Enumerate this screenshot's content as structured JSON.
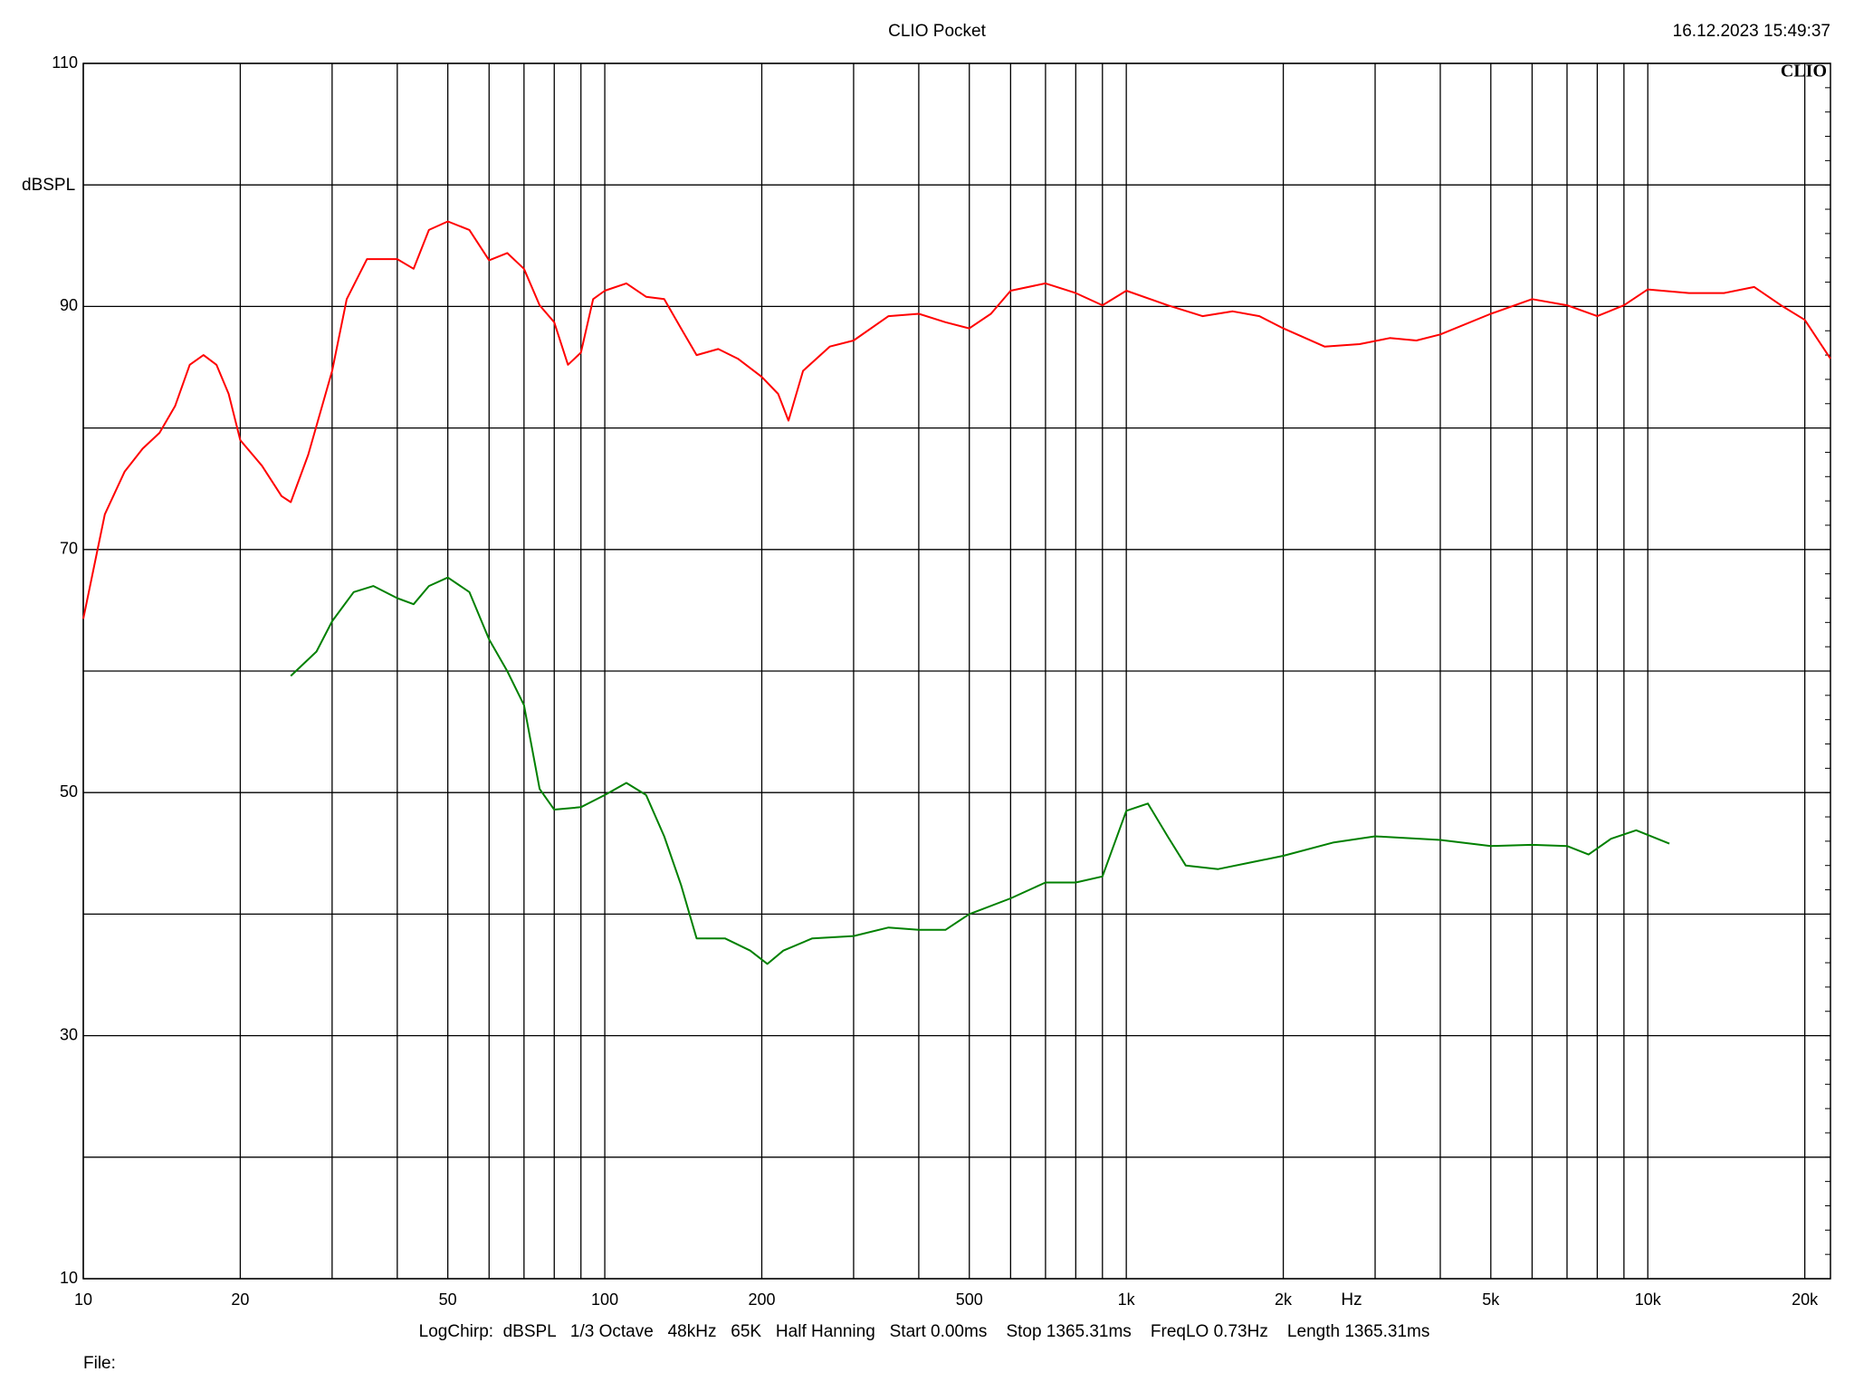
{
  "chart_data": {
    "type": "line",
    "title": "CLIO Pocket",
    "timestamp": "16.12.2023 15:49:37",
    "logo": "CLIO",
    "y_label": "dBSPL",
    "x_label": "Hz",
    "footer": "LogChirp:  dBSPL   1/3 Octave   48kHz   65K   Half Hanning   Start 0.00ms    Stop 1365.31ms    FreqLO 0.73Hz    Length 1365.31ms",
    "file_label": "File:",
    "x_log": true,
    "grid": true,
    "xlim": [
      10,
      22400
    ],
    "ylim": [
      10,
      110
    ],
    "xticks": [
      10,
      20,
      50,
      100,
      200,
      500,
      {
        "value": 1000,
        "label": "1k"
      },
      {
        "value": 2000,
        "label": "2k"
      },
      {
        "value": 5000,
        "label": "5k"
      },
      {
        "value": 10000,
        "label": "10k"
      },
      {
        "value": 20000,
        "label": "20k"
      }
    ],
    "xminor": [
      30,
      40,
      60,
      70,
      80,
      90,
      300,
      400,
      600,
      700,
      800,
      900,
      3000,
      4000,
      6000,
      7000,
      8000,
      9000
    ],
    "yticks": [
      10,
      30,
      50,
      70,
      90,
      110
    ],
    "yminor": [
      20,
      40,
      60,
      80,
      100
    ],
    "series": [
      {
        "color": "#ff0000",
        "x": [
          10,
          11,
          12,
          13,
          14,
          15,
          16,
          17,
          18,
          19,
          20,
          22,
          24,
          25,
          27,
          30,
          32,
          35,
          40,
          43,
          46,
          50,
          55,
          60,
          65,
          70,
          75,
          80,
          85,
          90,
          95,
          100,
          110,
          120,
          130,
          140,
          150,
          165,
          180,
          200,
          215,
          225,
          240,
          270,
          300,
          350,
          400,
          450,
          500,
          550,
          600,
          700,
          800,
          900,
          1000,
          1200,
          1400,
          1600,
          1800,
          2000,
          2400,
          2800,
          3200,
          3600,
          4000,
          5000,
          6000,
          7000,
          8000,
          9000,
          10000,
          12000,
          14000,
          16000,
          18000,
          20000,
          22400
        ],
        "values": [
          64.3,
          72.9,
          76.4,
          78.3,
          79.6,
          81.8,
          85.2,
          86.0,
          85.2,
          82.8,
          79.0,
          76.9,
          74.4,
          73.9,
          77.8,
          84.7,
          90.6,
          93.9,
          93.9,
          93.1,
          96.3,
          97.0,
          96.3,
          93.8,
          94.4,
          93.1,
          90.1,
          88.7,
          85.2,
          86.2,
          90.6,
          91.3,
          91.9,
          90.8,
          90.6,
          88.2,
          86.0,
          86.5,
          85.7,
          84.2,
          82.8,
          80.6,
          84.7,
          86.7,
          87.2,
          89.2,
          89.4,
          88.7,
          88.2,
          89.4,
          91.3,
          91.9,
          91.1,
          90.1,
          91.3,
          90.1,
          89.2,
          89.6,
          89.2,
          88.2,
          86.7,
          86.9,
          87.4,
          87.2,
          87.7,
          89.4,
          90.6,
          90.1,
          89.2,
          90.1,
          91.4,
          91.1,
          91.1,
          91.6,
          90.1,
          88.9,
          85.7
        ]
      },
      {
        "color": "#008000",
        "x": [
          25,
          28,
          30,
          33,
          36,
          40,
          43,
          46,
          50,
          55,
          60,
          65,
          70,
          75,
          80,
          90,
          100,
          110,
          120,
          130,
          140,
          150,
          170,
          190,
          205,
          220,
          250,
          300,
          350,
          400,
          450,
          500,
          600,
          700,
          800,
          900,
          1000,
          1100,
          1200,
          1300,
          1500,
          1800,
          2000,
          2500,
          3000,
          4000,
          5000,
          6000,
          7000,
          7700,
          8500,
          9500,
          11000
        ],
        "values": [
          59.6,
          61.6,
          64.1,
          66.5,
          67.0,
          66.0,
          65.5,
          67.0,
          67.7,
          66.5,
          62.6,
          60.0,
          57.2,
          50.3,
          48.6,
          48.8,
          49.8,
          50.8,
          49.8,
          46.4,
          42.4,
          38.0,
          38.0,
          37.0,
          35.9,
          37.0,
          38.0,
          38.2,
          38.9,
          38.7,
          38.7,
          40.0,
          41.3,
          42.6,
          42.6,
          43.1,
          48.5,
          49.1,
          46.4,
          44.0,
          43.7,
          44.4,
          44.8,
          45.9,
          46.4,
          46.1,
          45.6,
          45.7,
          45.6,
          44.9,
          46.2,
          46.9,
          45.8
        ]
      }
    ]
  }
}
